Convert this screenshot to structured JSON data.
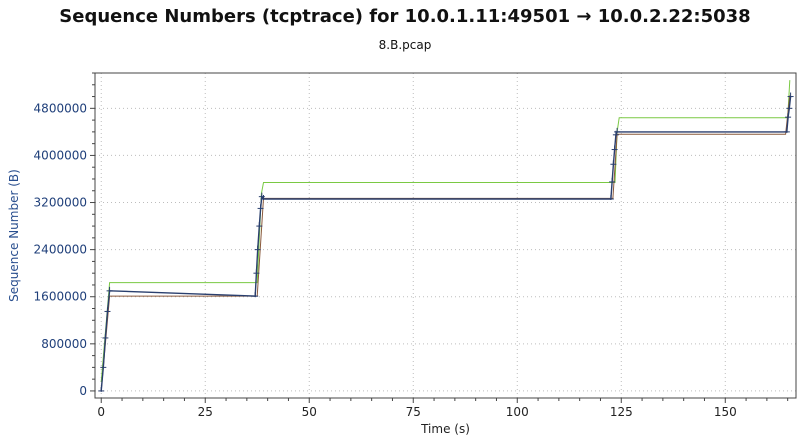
{
  "chart_data": {
    "type": "line",
    "title": "Sequence Numbers (tcptrace) for 10.0.1.11:49501 → 10.0.2.22:5038",
    "subtitle": "8.B.pcap",
    "xlabel": "Time (s)",
    "ylabel": "Sequence Number (B)",
    "xlim": [
      -1.5,
      167
    ],
    "ylim": [
      -120000,
      5400000
    ],
    "xticks": [
      0,
      25,
      50,
      75,
      100,
      125,
      150
    ],
    "yticks": [
      0,
      800000,
      1600000,
      2400000,
      3200000,
      4000000,
      4800000
    ],
    "grid": true,
    "colors": {
      "data": "#2a3f6e",
      "ack": "#8a5a3c",
      "window": "#7ac943",
      "axis_label_y": "#2a4f8f",
      "tick_y": "#1f3f7a"
    },
    "series": [
      {
        "name": "",
        "role": "window",
        "x": [
          0,
          2,
          37.5,
          38.5,
          39,
          123.5,
          124,
          124.5,
          165,
          165.5
        ],
        "y": [
          150000,
          1840000,
          1840000,
          3350000,
          3540000,
          3540000,
          4400000,
          4640000,
          4640000,
          5280000
        ]
      },
      {
        "name": "",
        "role": "ack",
        "x": [
          0,
          2,
          37.5,
          39,
          123,
          124,
          164.5,
          165.5
        ],
        "y": [
          0,
          1610000,
          1610000,
          3270000,
          3270000,
          4360000,
          4360000,
          5020000
        ]
      },
      {
        "name": "",
        "role": "data",
        "x": [
          0,
          0.5,
          1,
          1.5,
          2,
          37,
          37.3,
          37.6,
          38,
          38.3,
          38.6,
          39,
          122.5,
          122.8,
          123.1,
          123.4,
          123.7,
          124,
          164.8,
          165.1,
          165.4,
          165.7
        ],
        "y": [
          0,
          400000,
          900000,
          1350000,
          1700000,
          1610000,
          2000000,
          2400000,
          2800000,
          3100000,
          3300000,
          3260000,
          3260000,
          3550000,
          3850000,
          4100000,
          4350000,
          4400000,
          4400000,
          4650000,
          4800000,
          5000000
        ]
      }
    ]
  }
}
